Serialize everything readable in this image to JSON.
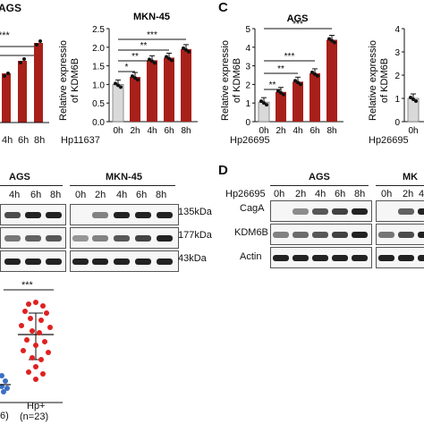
{
  "figure": {
    "panel_letters": {
      "C": "C",
      "D": "D"
    },
    "colors": {
      "bar_red": "#a8201a",
      "bar_grey": "#d9d9d9",
      "dot_blue": "#3a6fc4",
      "dot_red": "#e02020"
    }
  },
  "panelA": {
    "left_title": "AGS",
    "right_title": "MKN-45",
    "left_partial_significance": "***",
    "left_visible_timepoints": [
      "4h",
      "6h",
      "8h"
    ],
    "treatment_label": "Hp11637",
    "timepoints": [
      "0h",
      "2h",
      "4h",
      "6h",
      "8h"
    ]
  },
  "panelB": {
    "left_title": "AGS",
    "right_title": "MKN-45",
    "timepoints_left_visible": [
      "4h",
      "6h",
      "8h"
    ],
    "timepoints_right": [
      "0h",
      "2h",
      "4h",
      "6h",
      "8h"
    ],
    "kda": [
      "135kDa",
      "177kDa",
      "43kDa"
    ]
  },
  "panelC": {
    "title": "AGS",
    "ylabel_line1": "Relative expressio",
    "ylabel_line2": "of KDM6B",
    "right_ylabel_line1": "Relative expressio",
    "right_ylabel_line2": "of KDM6B",
    "treatment_label": "Hp26695",
    "right_treatment_label": "Hp26695",
    "timepoints": [
      "0h",
      "2h",
      "4h",
      "6h",
      "8h"
    ],
    "right_visible_timepoint": "0h"
  },
  "panelD": {
    "left_title": "AGS",
    "right_title_partial": "MK",
    "treatment_label": "Hp26695",
    "timepoints": [
      "0h",
      "2h",
      "4h",
      "6h",
      "8h"
    ],
    "right_visible_timepoints": [
      "0h",
      "2h",
      "4"
    ],
    "rows": [
      "CagA",
      "KDM6B",
      "Actin"
    ]
  },
  "panelE": {
    "significance": "***",
    "left_partial_label": "6)",
    "right_group_label": "Hp+",
    "right_group_n": "(n=23)"
  },
  "chart_data": [
    {
      "type": "bar",
      "title": "MKN-45",
      "xlabel": "Hp11637",
      "ylabel": "Relative expression of KDM6B",
      "categories": [
        "0h",
        "2h",
        "4h",
        "6h",
        "8h"
      ],
      "values": [
        1.0,
        1.2,
        1.65,
        1.72,
        1.95
      ],
      "ylim": [
        0,
        2.5
      ],
      "yticks": [
        "0.0",
        "0.5",
        "1.0",
        "1.5",
        "2.0",
        "2.5"
      ],
      "significance": [
        {
          "from": "0h",
          "to": "2h",
          "label": "*"
        },
        {
          "from": "0h",
          "to": "4h",
          "label": "**"
        },
        {
          "from": "0h",
          "to": "6h",
          "label": "**"
        },
        {
          "from": "0h",
          "to": "8h",
          "label": "***"
        }
      ]
    },
    {
      "type": "bar",
      "title": "AGS",
      "xlabel": "Hp26695",
      "ylabel": "Relative expression of KDM6B",
      "categories": [
        "0h",
        "2h",
        "4h",
        "6h",
        "8h"
      ],
      "values": [
        1.05,
        1.6,
        2.15,
        2.6,
        4.4
      ],
      "ylim": [
        0,
        5
      ],
      "yticks": [
        "0",
        "1",
        "2",
        "3",
        "4",
        "5"
      ],
      "significance": [
        {
          "from": "0h",
          "to": "2h",
          "label": "**"
        },
        {
          "from": "0h",
          "to": "4h",
          "label": "**"
        },
        {
          "from": "0h",
          "to": "6h",
          "label": "***"
        },
        {
          "from": "0h",
          "to": "8h",
          "label": "***"
        }
      ]
    },
    {
      "type": "bar",
      "title": "",
      "categories": [
        "0h"
      ],
      "values": [
        1.0
      ],
      "ylim": [
        0,
        4
      ],
      "yticks": [
        "0",
        "1",
        "2",
        "3",
        "4"
      ]
    }
  ]
}
